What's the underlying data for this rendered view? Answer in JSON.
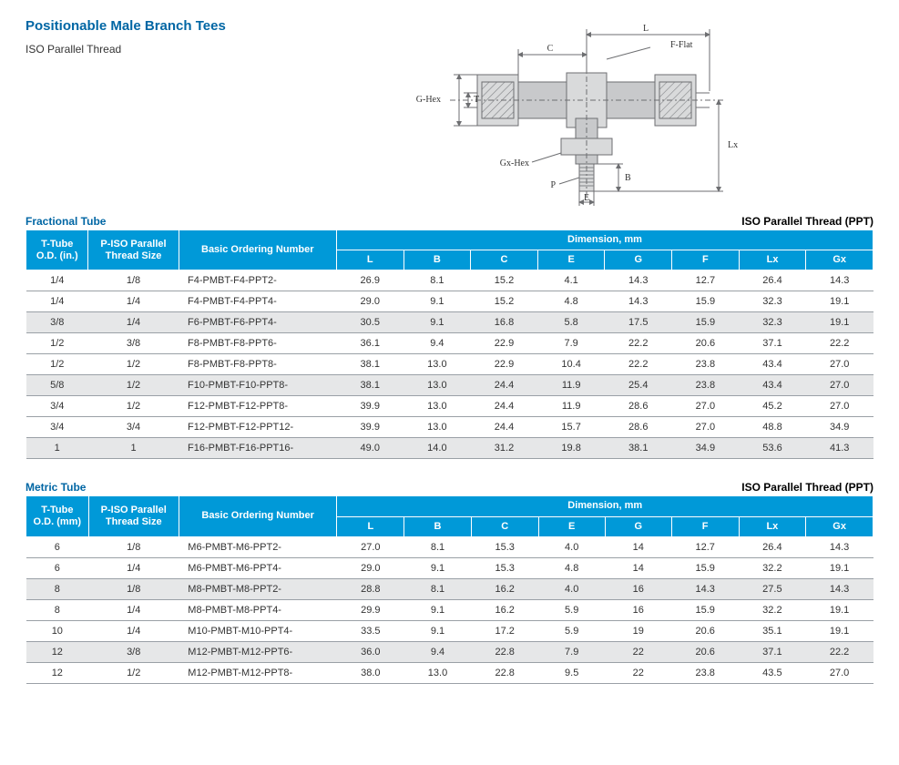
{
  "title": "Positionable Male Branch Tees",
  "subtitle": "ISO Parallel Thread",
  "diagram": {
    "labels": {
      "L": "L",
      "C": "C",
      "T": "T",
      "GHex": "G-Hex",
      "GxHex": "Gx-Hex",
      "P": "P",
      "E": "E",
      "B": "B",
      "Lx": "Lx",
      "FFlat": "F-Flat"
    },
    "stroke": "#6d6e71",
    "fill": "#d9dadb",
    "body_fill": "#c8c9cb",
    "hatch": "#808285"
  },
  "tables": {
    "fractional": {
      "caption_left": "Fractional Tube",
      "caption_right": "ISO Parallel Thread (PPT)",
      "head": {
        "tube": "T-Tube O.D. (in.)",
        "thread": "P-ISO Parallel Thread Size",
        "part": "Basic Ordering Number",
        "dim_span": "Dimension, mm",
        "dims": [
          "L",
          "B",
          "C",
          "E",
          "G",
          "F",
          "Lx",
          "Gx"
        ]
      },
      "rows": [
        {
          "tube": "1/4",
          "thread": "1/8",
          "part": "F4-PMBT-F4-PPT2-",
          "L": "26.9",
          "B": "8.1",
          "C": "15.2",
          "E": "4.1",
          "G": "14.3",
          "F": "12.7",
          "Lx": "26.4",
          "Gx": "14.3"
        },
        {
          "tube": "1/4",
          "thread": "1/4",
          "part": "F4-PMBT-F4-PPT4-",
          "L": "29.0",
          "B": "9.1",
          "C": "15.2",
          "E": "4.8",
          "G": "14.3",
          "F": "15.9",
          "Lx": "32.3",
          "Gx": "19.1"
        },
        {
          "tube": "3/8",
          "thread": "1/4",
          "part": "F6-PMBT-F6-PPT4-",
          "L": "30.5",
          "B": "9.1",
          "C": "16.8",
          "E": "5.8",
          "G": "17.5",
          "F": "15.9",
          "Lx": "32.3",
          "Gx": "19.1",
          "alt": true
        },
        {
          "tube": "1/2",
          "thread": "3/8",
          "part": "F8-PMBT-F8-PPT6-",
          "L": "36.1",
          "B": "9.4",
          "C": "22.9",
          "E": "7.9",
          "G": "22.2",
          "F": "20.6",
          "Lx": "37.1",
          "Gx": "22.2"
        },
        {
          "tube": "1/2",
          "thread": "1/2",
          "part": "F8-PMBT-F8-PPT8-",
          "L": "38.1",
          "B": "13.0",
          "C": "22.9",
          "E": "10.4",
          "G": "22.2",
          "F": "23.8",
          "Lx": "43.4",
          "Gx": "27.0"
        },
        {
          "tube": "5/8",
          "thread": "1/2",
          "part": "F10-PMBT-F10-PPT8-",
          "L": "38.1",
          "B": "13.0",
          "C": "24.4",
          "E": "11.9",
          "G": "25.4",
          "F": "23.8",
          "Lx": "43.4",
          "Gx": "27.0",
          "alt": true
        },
        {
          "tube": "3/4",
          "thread": "1/2",
          "part": "F12-PMBT-F12-PPT8-",
          "L": "39.9",
          "B": "13.0",
          "C": "24.4",
          "E": "11.9",
          "G": "28.6",
          "F": "27.0",
          "Lx": "45.2",
          "Gx": "27.0"
        },
        {
          "tube": "3/4",
          "thread": "3/4",
          "part": "F12-PMBT-F12-PPT12-",
          "L": "39.9",
          "B": "13.0",
          "C": "24.4",
          "E": "15.7",
          "G": "28.6",
          "F": "27.0",
          "Lx": "48.8",
          "Gx": "34.9"
        },
        {
          "tube": "1",
          "thread": "1",
          "part": "F16-PMBT-F16-PPT16-",
          "L": "49.0",
          "B": "14.0",
          "C": "31.2",
          "E": "19.8",
          "G": "38.1",
          "F": "34.9",
          "Lx": "53.6",
          "Gx": "41.3",
          "alt": true
        }
      ]
    },
    "metric": {
      "caption_left": "Metric Tube",
      "caption_right": "ISO Parallel Thread (PPT)",
      "head": {
        "tube": "T-Tube O.D. (mm)",
        "thread": "P-ISO Parallel Thread Size",
        "part": "Basic Ordering Number",
        "dim_span": "Dimension, mm",
        "dims": [
          "L",
          "B",
          "C",
          "E",
          "G",
          "F",
          "Lx",
          "Gx"
        ]
      },
      "rows": [
        {
          "tube": "6",
          "thread": "1/8",
          "part": "M6-PMBT-M6-PPT2-",
          "L": "27.0",
          "B": "8.1",
          "C": "15.3",
          "E": "4.0",
          "G": "14",
          "F": "12.7",
          "Lx": "26.4",
          "Gx": "14.3"
        },
        {
          "tube": "6",
          "thread": "1/4",
          "part": "M6-PMBT-M6-PPT4-",
          "L": "29.0",
          "B": "9.1",
          "C": "15.3",
          "E": "4.8",
          "G": "14",
          "F": "15.9",
          "Lx": "32.2",
          "Gx": "19.1"
        },
        {
          "tube": "8",
          "thread": "1/8",
          "part": "M8-PMBT-M8-PPT2-",
          "L": "28.8",
          "B": "8.1",
          "C": "16.2",
          "E": "4.0",
          "G": "16",
          "F": "14.3",
          "Lx": "27.5",
          "Gx": "14.3",
          "alt": true
        },
        {
          "tube": "8",
          "thread": "1/4",
          "part": "M8-PMBT-M8-PPT4-",
          "L": "29.9",
          "B": "9.1",
          "C": "16.2",
          "E": "5.9",
          "G": "16",
          "F": "15.9",
          "Lx": "32.2",
          "Gx": "19.1"
        },
        {
          "tube": "10",
          "thread": "1/4",
          "part": "M10-PMBT-M10-PPT4-",
          "L": "33.5",
          "B": "9.1",
          "C": "17.2",
          "E": "5.9",
          "G": "19",
          "F": "20.6",
          "Lx": "35.1",
          "Gx": "19.1"
        },
        {
          "tube": "12",
          "thread": "3/8",
          "part": "M12-PMBT-M12-PPT6-",
          "L": "36.0",
          "B": "9.4",
          "C": "22.8",
          "E": "7.9",
          "G": "22",
          "F": "20.6",
          "Lx": "37.1",
          "Gx": "22.2",
          "alt": true
        },
        {
          "tube": "12",
          "thread": "1/2",
          "part": "M12-PMBT-M12-PPT8-",
          "L": "38.0",
          "B": "13.0",
          "C": "22.8",
          "E": "9.5",
          "G": "22",
          "F": "23.8",
          "Lx": "43.5",
          "Gx": "27.0"
        }
      ]
    }
  }
}
